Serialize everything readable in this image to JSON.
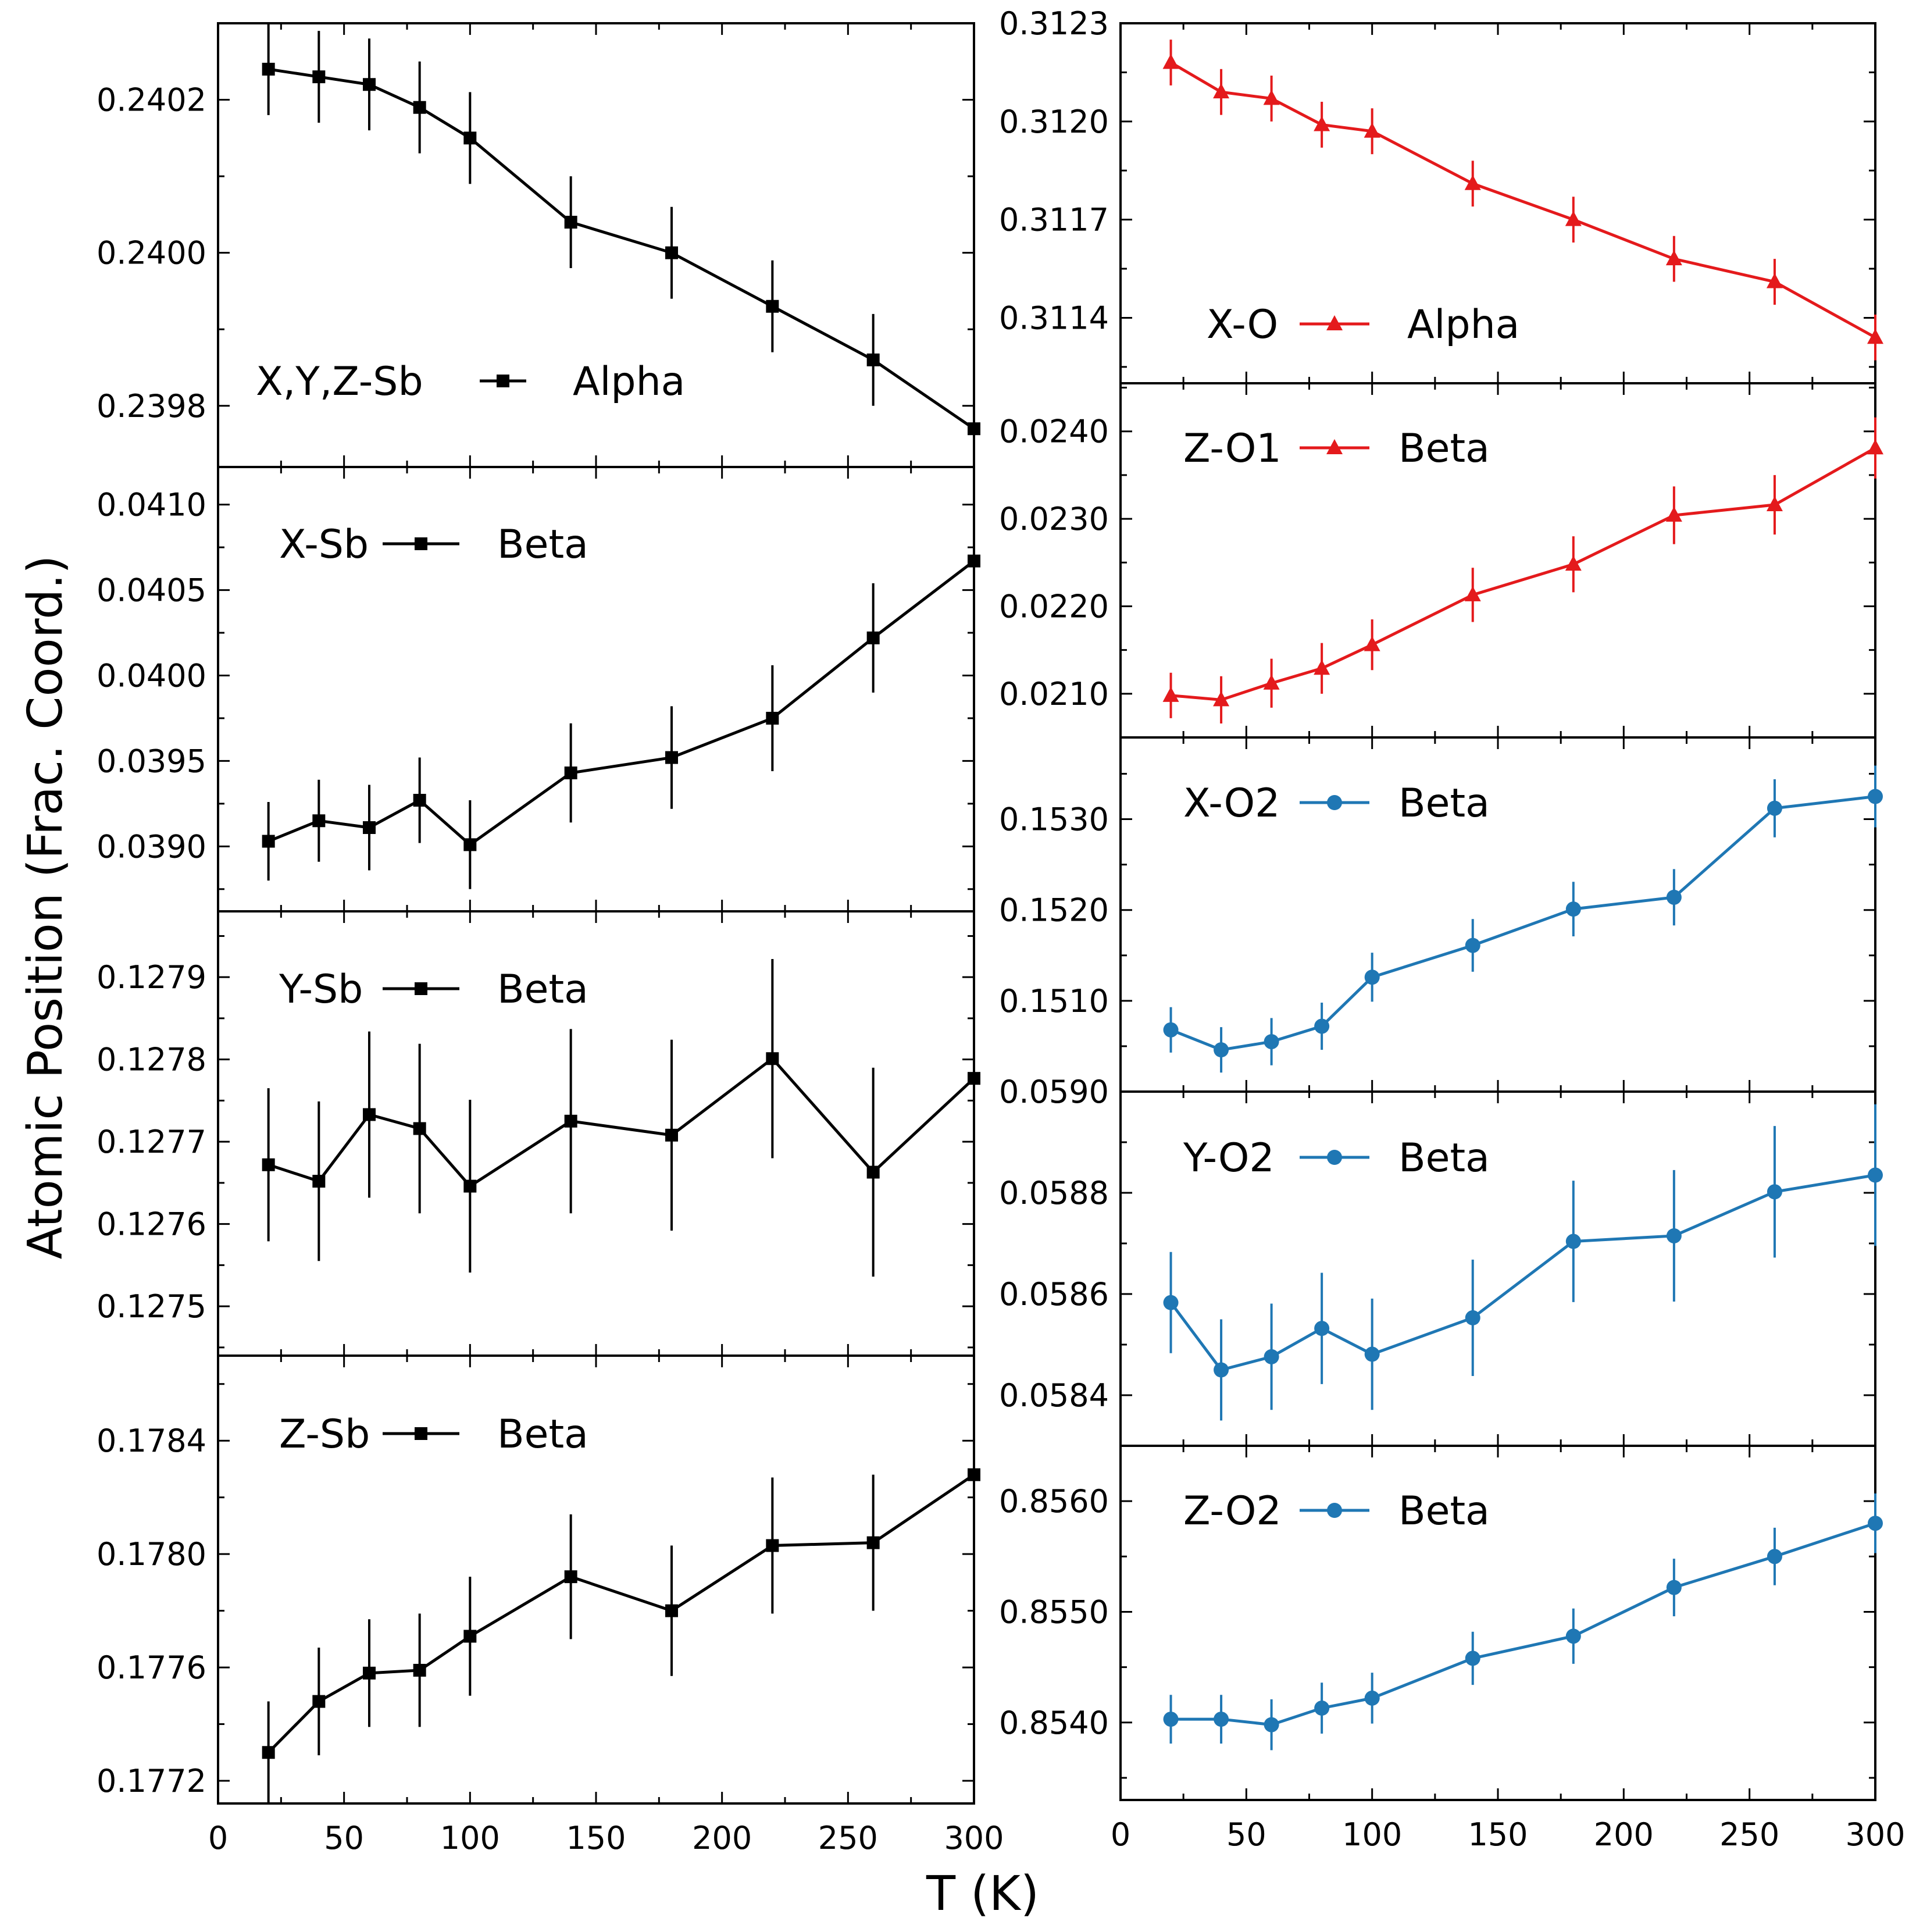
{
  "figure": {
    "xlabel": "T (K)",
    "ylabel": "Atomic Position (Frac. Coord.)"
  },
  "colors": {
    "black": "#000000",
    "red": "#e41a1c",
    "blue": "#1f77b4"
  },
  "chart_data": [
    {
      "id": "p0",
      "type": "line",
      "marker": "square",
      "color": "#000000",
      "label": "X,Y,Z-Sb",
      "legend": "Alpha",
      "xlim": [
        0,
        300
      ],
      "ylim": [
        0.23972,
        0.2403
      ],
      "yticks": [
        0.2398,
        0.24,
        0.2402
      ],
      "yticklabels": [
        "0.2398",
        "0.2400",
        "0.2402"
      ],
      "xticks": [
        0,
        50,
        100,
        150,
        200,
        250,
        300
      ],
      "xticklabels": [],
      "x": [
        20,
        40,
        60,
        80,
        100,
        140,
        180,
        220,
        260,
        300
      ],
      "y": [
        0.24024,
        0.24023,
        0.24022,
        0.24019,
        0.24015,
        0.24004,
        0.24,
        0.23993,
        0.23986,
        0.23977
      ],
      "err": [
        6e-05,
        6e-05,
        6e-05,
        6e-05,
        6e-05,
        6e-05,
        6e-05,
        6e-05,
        6e-05,
        6e-05
      ]
    },
    {
      "id": "p1",
      "type": "line",
      "marker": "square",
      "color": "#000000",
      "label": "X-Sb",
      "legend": "Beta",
      "xlim": [
        0,
        300
      ],
      "ylim": [
        0.03862,
        0.04122
      ],
      "yticks": [
        0.039,
        0.0395,
        0.04,
        0.0405,
        0.041
      ],
      "yticklabels": [
        "0.0390",
        "0.0395",
        "0.0400",
        "0.0405",
        "0.0410"
      ],
      "xticks": [
        0,
        50,
        100,
        150,
        200,
        250,
        300
      ],
      "xticklabels": [],
      "x": [
        20,
        40,
        60,
        80,
        100,
        140,
        180,
        220,
        260,
        300
      ],
      "y": [
        0.03903,
        0.03915,
        0.03911,
        0.03927,
        0.03901,
        0.03943,
        0.03952,
        0.03975,
        0.04022,
        0.04067
      ],
      "err": [
        0.00023,
        0.00024,
        0.00025,
        0.00025,
        0.00026,
        0.00029,
        0.0003,
        0.00031,
        0.00032,
        0.00034
      ]
    },
    {
      "id": "p2",
      "type": "line",
      "marker": "square",
      "color": "#000000",
      "label": "Y-Sb",
      "legend": "Beta",
      "xlim": [
        0,
        300
      ],
      "ylim": [
        0.12744,
        0.12798
      ],
      "yticks": [
        0.1275,
        0.1276,
        0.1277,
        0.1278,
        0.1279
      ],
      "yticklabels": [
        "0.1275",
        "0.1276",
        "0.1277",
        "0.1278",
        "0.1279"
      ],
      "xticks": [
        0,
        50,
        100,
        150,
        200,
        250,
        300
      ],
      "xticklabels": [],
      "x": [
        20,
        40,
        60,
        80,
        100,
        140,
        180,
        220,
        260,
        300
      ],
      "y": [
        0.127672,
        0.127652,
        0.127733,
        0.127716,
        0.127646,
        0.127725,
        0.127708,
        0.127801,
        0.127663,
        0.127777
      ],
      "err": [
        9.3e-05,
        9.7e-05,
        0.000101,
        0.000103,
        0.000105,
        0.000112,
        0.000116,
        0.000121,
        0.000127,
        0.000137
      ]
    },
    {
      "id": "p3",
      "type": "line",
      "marker": "square",
      "color": "#000000",
      "label": "Z-Sb",
      "legend": "Beta",
      "xlim": [
        0,
        300
      ],
      "ylim": [
        0.17712,
        0.1787
      ],
      "yticks": [
        0.1772,
        0.1776,
        0.178,
        0.1784
      ],
      "yticklabels": [
        "0.1772",
        "0.1776",
        "0.1780",
        "0.1784"
      ],
      "xticks": [
        0,
        50,
        100,
        150,
        200,
        250,
        300
      ],
      "xticklabels": [
        "0",
        "50",
        "100",
        "150",
        "200",
        "250",
        "300"
      ],
      "x": [
        20,
        40,
        60,
        80,
        100,
        140,
        180,
        220,
        260,
        300
      ],
      "y": [
        0.1773,
        0.17748,
        0.17758,
        0.17759,
        0.17771,
        0.17792,
        0.1778,
        0.17803,
        0.17804,
        0.17828
      ],
      "err": [
        0.00018,
        0.00019,
        0.00019,
        0.0002,
        0.00021,
        0.00022,
        0.00023,
        0.00024,
        0.00024,
        0.00026
      ]
    },
    {
      "id": "p4",
      "type": "line",
      "marker": "triangle",
      "color": "#e41a1c",
      "label": "X-O",
      "legend": "Alpha",
      "xlim": [
        0,
        300
      ],
      "ylim": [
        0.3112,
        0.3123
      ],
      "yticks": [
        0.3114,
        0.3117,
        0.312,
        0.3123
      ],
      "yticklabels": [
        "0.3114",
        "0.3117",
        "0.3120",
        "0.3123"
      ],
      "xticks": [
        0,
        50,
        100,
        150,
        200,
        250,
        300
      ],
      "xticklabels": [],
      "x": [
        20,
        40,
        60,
        80,
        100,
        140,
        180,
        220,
        260,
        300
      ],
      "y": [
        0.31218,
        0.31209,
        0.31207,
        0.31199,
        0.31197,
        0.31181,
        0.3117,
        0.31158,
        0.31151,
        0.31134
      ],
      "err": [
        7e-05,
        7e-05,
        7e-05,
        7e-05,
        7e-05,
        7e-05,
        7e-05,
        7e-05,
        7e-05,
        7e-05
      ]
    },
    {
      "id": "p5",
      "type": "line",
      "marker": "triangle",
      "color": "#e41a1c",
      "label": "Z-O1",
      "legend": "Beta",
      "xlim": [
        0,
        300
      ],
      "ylim": [
        0.0205,
        0.02455
      ],
      "yticks": [
        0.021,
        0.022,
        0.023,
        0.024
      ],
      "yticklabels": [
        "0.0210",
        "0.0220",
        "0.0230",
        "0.0240"
      ],
      "xticks": [
        0,
        50,
        100,
        150,
        200,
        250,
        300
      ],
      "xticklabels": [],
      "x": [
        20,
        40,
        60,
        80,
        100,
        140,
        180,
        220,
        260,
        300
      ],
      "y": [
        0.02098,
        0.02093,
        0.02112,
        0.02129,
        0.02156,
        0.02213,
        0.02248,
        0.02304,
        0.02316,
        0.02381
      ],
      "err": [
        0.00026,
        0.00027,
        0.00028,
        0.00029,
        0.00029,
        0.00031,
        0.00032,
        0.00033,
        0.00034,
        0.00035
      ]
    },
    {
      "id": "p6",
      "type": "line",
      "marker": "circle",
      "color": "#1f77b4",
      "label": "X-O2",
      "legend": "Beta",
      "xlim": [
        0,
        300
      ],
      "ylim": [
        0.15,
        0.1539
      ],
      "yticks": [
        0.151,
        0.152,
        0.153
      ],
      "yticklabels": [
        "0.1510",
        "0.1520",
        "0.1530"
      ],
      "xticks": [
        0,
        50,
        100,
        150,
        200,
        250,
        300
      ],
      "xticklabels": [],
      "x": [
        20,
        40,
        60,
        80,
        100,
        140,
        180,
        220,
        260,
        300
      ],
      "y": [
        0.15068,
        0.15046,
        0.15055,
        0.15072,
        0.15126,
        0.15161,
        0.15201,
        0.15214,
        0.15312,
        0.15325
      ],
      "err": [
        0.00025,
        0.00025,
        0.00026,
        0.00026,
        0.00027,
        0.00029,
        0.0003,
        0.00031,
        0.00032,
        0.00034
      ]
    },
    {
      "id": "p7",
      "type": "line",
      "marker": "circle",
      "color": "#1f77b4",
      "label": "Y-O2",
      "legend": "Beta",
      "xlim": [
        0,
        300
      ],
      "ylim": [
        0.0583,
        0.059
      ],
      "yticks": [
        0.0584,
        0.0586,
        0.0588,
        0.059
      ],
      "yticklabels": [
        "0.0584",
        "0.0586",
        "0.0588",
        "0.0590"
      ],
      "xticks": [
        0,
        50,
        100,
        150,
        200,
        250,
        300
      ],
      "xticklabels": [],
      "x": [
        20,
        40,
        60,
        80,
        100,
        140,
        180,
        220,
        260,
        300
      ],
      "y": [
        0.058583,
        0.05845,
        0.058476,
        0.058532,
        0.058481,
        0.058553,
        0.058704,
        0.058715,
        0.058802,
        0.058835
      ],
      "err": [
        0.0001,
        0.0001,
        0.000105,
        0.00011,
        0.00011,
        0.000115,
        0.00012,
        0.00013,
        0.00013,
        0.00014
      ]
    },
    {
      "id": "p8",
      "type": "line",
      "marker": "circle",
      "color": "#1f77b4",
      "label": "Z-O2",
      "legend": "Beta",
      "xlim": [
        0,
        300
      ],
      "ylim": [
        0.8533,
        0.8565
      ],
      "yticks": [
        0.854,
        0.855,
        0.856
      ],
      "yticklabels": [
        "0.8540",
        "0.8550",
        "0.8560"
      ],
      "xticks": [
        0,
        50,
        100,
        150,
        200,
        250,
        300
      ],
      "xticklabels": [
        "0",
        "50",
        "100",
        "150",
        "200",
        "250",
        "300"
      ],
      "x": [
        20,
        40,
        60,
        80,
        100,
        140,
        180,
        220,
        260,
        300
      ],
      "y": [
        0.85403,
        0.85403,
        0.85398,
        0.85413,
        0.85422,
        0.85458,
        0.85478,
        0.85522,
        0.8555,
        0.8558
      ],
      "err": [
        0.00022,
        0.00022,
        0.00023,
        0.00023,
        0.00023,
        0.00024,
        0.00025,
        0.00026,
        0.00026,
        0.00027
      ]
    }
  ]
}
